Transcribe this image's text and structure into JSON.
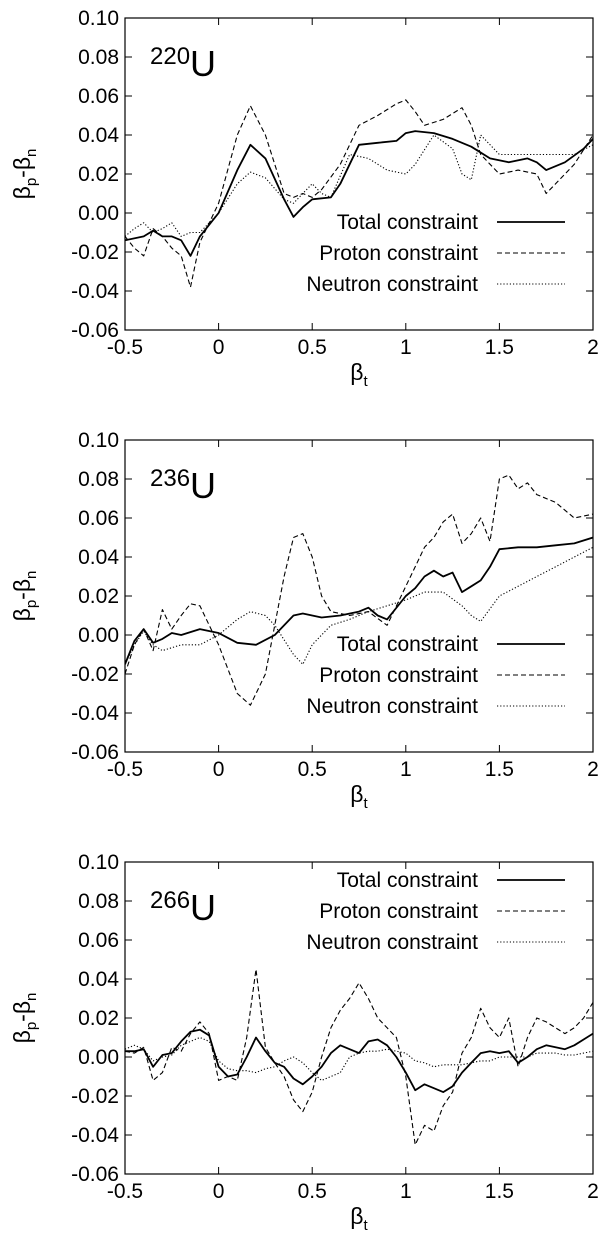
{
  "chart_data": [
    {
      "type": "line",
      "nucleus_mass": "220",
      "nucleus_symbol": "U",
      "xlabel": "β",
      "xlabel_sub": "t",
      "ylabel_parts": [
        "β",
        "p",
        "-β",
        "n"
      ],
      "xlim": [
        -0.5,
        2
      ],
      "ylim": [
        -0.06,
        0.1
      ],
      "xticks": [
        "-0.5",
        "0",
        "0.5",
        "1",
        "1.5",
        "2"
      ],
      "yticks": [
        "-0.06",
        "-0.04",
        "-0.02",
        "0.00",
        "0.02",
        "0.04",
        "0.06",
        "0.08",
        "0.10"
      ],
      "grid": false,
      "legend_position": "bottom-right",
      "series": [
        {
          "name": "Total constraint",
          "style": "solid",
          "x": [
            -0.5,
            -0.4,
            -0.35,
            -0.3,
            -0.25,
            -0.2,
            -0.15,
            -0.1,
            0,
            0.1,
            0.17,
            0.25,
            0.35,
            0.4,
            0.45,
            0.5,
            0.6,
            0.65,
            0.75,
            0.85,
            0.95,
            1.0,
            1.05,
            1.15,
            1.25,
            1.35,
            1.45,
            1.55,
            1.65,
            1.7,
            1.75,
            1.85,
            1.95,
            2.0
          ],
          "y": [
            -0.014,
            -0.012,
            -0.009,
            -0.012,
            -0.012,
            -0.014,
            -0.022,
            -0.012,
            0.0,
            0.022,
            0.035,
            0.028,
            0.007,
            -0.002,
            0.003,
            0.007,
            0.008,
            0.015,
            0.035,
            0.036,
            0.037,
            0.041,
            0.042,
            0.041,
            0.038,
            0.034,
            0.028,
            0.026,
            0.028,
            0.026,
            0.022,
            0.026,
            0.033,
            0.038
          ]
        },
        {
          "name": "Proton constraint",
          "style": "dashed",
          "x": [
            -0.5,
            -0.45,
            -0.4,
            -0.35,
            -0.3,
            -0.25,
            -0.2,
            -0.15,
            -0.1,
            0,
            0.1,
            0.17,
            0.25,
            0.35,
            0.4,
            0.45,
            0.5,
            0.55,
            0.65,
            0.75,
            0.85,
            0.95,
            1.0,
            1.05,
            1.1,
            1.2,
            1.3,
            1.35,
            1.4,
            1.5,
            1.6,
            1.7,
            1.75,
            1.8,
            1.9,
            2.0
          ],
          "y": [
            -0.012,
            -0.018,
            -0.022,
            -0.008,
            -0.012,
            -0.018,
            -0.022,
            -0.038,
            -0.015,
            0.005,
            0.04,
            0.055,
            0.04,
            0.01,
            0.008,
            0.01,
            0.008,
            0.012,
            0.025,
            0.045,
            0.05,
            0.056,
            0.058,
            0.052,
            0.045,
            0.048,
            0.054,
            0.045,
            0.03,
            0.02,
            0.022,
            0.02,
            0.01,
            0.015,
            0.025,
            0.04
          ]
        },
        {
          "name": "Neutron constraint",
          "style": "dotted",
          "x": [
            -0.5,
            -0.45,
            -0.4,
            -0.35,
            -0.3,
            -0.25,
            -0.2,
            -0.15,
            -0.1,
            0,
            0.1,
            0.17,
            0.25,
            0.35,
            0.4,
            0.45,
            0.5,
            0.55,
            0.6,
            0.7,
            0.8,
            0.9,
            1.0,
            1.05,
            1.15,
            1.25,
            1.3,
            1.35,
            1.4,
            1.5,
            1.6,
            1.7,
            1.8,
            1.9,
            2.0
          ],
          "y": [
            -0.012,
            -0.008,
            -0.005,
            -0.01,
            -0.008,
            -0.005,
            -0.012,
            -0.01,
            -0.01,
            0.0,
            0.015,
            0.021,
            0.018,
            0.007,
            0.005,
            0.01,
            0.015,
            0.01,
            0.008,
            0.03,
            0.028,
            0.022,
            0.02,
            0.025,
            0.04,
            0.033,
            0.02,
            0.017,
            0.04,
            0.03,
            0.03,
            0.03,
            0.03,
            0.03,
            0.035
          ]
        }
      ]
    },
    {
      "type": "line",
      "nucleus_mass": "236",
      "nucleus_symbol": "U",
      "xlabel": "β",
      "xlabel_sub": "t",
      "ylabel_parts": [
        "β",
        "p",
        "-β",
        "n"
      ],
      "xlim": [
        -0.5,
        2
      ],
      "ylim": [
        -0.06,
        0.1
      ],
      "xticks": [
        "-0.5",
        "0",
        "0.5",
        "1",
        "1.5",
        "2"
      ],
      "yticks": [
        "-0.06",
        "-0.04",
        "-0.02",
        "0.00",
        "0.02",
        "0.04",
        "0.06",
        "0.08",
        "0.10"
      ],
      "grid": false,
      "legend_position": "bottom-right",
      "series": [
        {
          "name": "Total constraint",
          "style": "solid",
          "x": [
            -0.5,
            -0.45,
            -0.4,
            -0.35,
            -0.3,
            -0.25,
            -0.2,
            -0.1,
            0,
            0.1,
            0.2,
            0.3,
            0.4,
            0.45,
            0.55,
            0.65,
            0.75,
            0.8,
            0.85,
            0.9,
            1.0,
            1.05,
            1.1,
            1.15,
            1.2,
            1.25,
            1.3,
            1.35,
            1.4,
            1.45,
            1.5,
            1.6,
            1.7,
            1.8,
            1.9,
            2.0
          ],
          "y": [
            -0.015,
            -0.003,
            0.003,
            -0.004,
            -0.002,
            0.001,
            0.0,
            0.003,
            0.001,
            -0.004,
            -0.005,
            0.0,
            0.01,
            0.011,
            0.009,
            0.01,
            0.012,
            0.014,
            0.01,
            0.008,
            0.02,
            0.024,
            0.03,
            0.033,
            0.03,
            0.032,
            0.022,
            0.025,
            0.028,
            0.035,
            0.044,
            0.045,
            0.045,
            0.046,
            0.047,
            0.05
          ]
        },
        {
          "name": "Proton constraint",
          "style": "dashed",
          "x": [
            -0.5,
            -0.45,
            -0.4,
            -0.35,
            -0.3,
            -0.25,
            -0.2,
            -0.15,
            -0.1,
            0,
            0.1,
            0.17,
            0.25,
            0.35,
            0.4,
            0.45,
            0.5,
            0.55,
            0.6,
            0.7,
            0.8,
            0.9,
            1.0,
            1.05,
            1.1,
            1.15,
            1.2,
            1.25,
            1.3,
            1.35,
            1.4,
            1.45,
            1.5,
            1.55,
            1.6,
            1.65,
            1.7,
            1.8,
            1.9,
            2.0
          ],
          "y": [
            -0.02,
            -0.005,
            0.003,
            -0.008,
            0.013,
            0.003,
            0.01,
            0.016,
            0.015,
            -0.005,
            -0.03,
            -0.036,
            -0.02,
            0.03,
            0.05,
            0.052,
            0.04,
            0.02,
            0.012,
            0.01,
            0.012,
            0.005,
            0.025,
            0.035,
            0.045,
            0.05,
            0.058,
            0.062,
            0.047,
            0.052,
            0.06,
            0.048,
            0.08,
            0.082,
            0.075,
            0.078,
            0.072,
            0.068,
            0.06,
            0.062
          ]
        },
        {
          "name": "Neutron constraint",
          "style": "dotted",
          "x": [
            -0.5,
            -0.45,
            -0.4,
            -0.35,
            -0.3,
            -0.2,
            -0.1,
            0,
            0.1,
            0.17,
            0.25,
            0.3,
            0.4,
            0.45,
            0.5,
            0.6,
            0.7,
            0.8,
            0.9,
            1.0,
            1.1,
            1.2,
            1.3,
            1.35,
            1.4,
            1.5,
            1.6,
            1.7,
            1.8,
            1.9,
            2.0
          ],
          "y": [
            -0.015,
            -0.005,
            0.002,
            -0.005,
            -0.008,
            -0.005,
            -0.005,
            0.0,
            0.008,
            0.012,
            0.01,
            0.005,
            -0.01,
            -0.015,
            -0.005,
            0.005,
            0.008,
            0.012,
            0.015,
            0.018,
            0.022,
            0.022,
            0.015,
            0.01,
            0.007,
            0.02,
            0.025,
            0.03,
            0.035,
            0.04,
            0.045
          ]
        }
      ]
    },
    {
      "type": "line",
      "nucleus_mass": "266",
      "nucleus_symbol": "U",
      "xlabel": "β",
      "xlabel_sub": "t",
      "ylabel_parts": [
        "β",
        "p",
        "-β",
        "n"
      ],
      "xlim": [
        -0.5,
        2
      ],
      "ylim": [
        -0.06,
        0.1
      ],
      "xticks": [
        "-0.5",
        "0",
        "0.5",
        "1",
        "1.5",
        "2"
      ],
      "yticks": [
        "-0.06",
        "-0.04",
        "-0.02",
        "0.00",
        "0.02",
        "0.04",
        "0.06",
        "0.08",
        "0.10"
      ],
      "grid": false,
      "legend_position": "top-right",
      "series": [
        {
          "name": "Total constraint",
          "style": "solid",
          "x": [
            -0.5,
            -0.45,
            -0.4,
            -0.35,
            -0.3,
            -0.25,
            -0.2,
            -0.15,
            -0.1,
            -0.05,
            0.0,
            0.05,
            0.1,
            0.15,
            0.2,
            0.25,
            0.3,
            0.35,
            0.4,
            0.45,
            0.5,
            0.55,
            0.6,
            0.65,
            0.7,
            0.75,
            0.8,
            0.85,
            0.9,
            0.95,
            1.0,
            1.05,
            1.1,
            1.15,
            1.2,
            1.25,
            1.3,
            1.35,
            1.4,
            1.45,
            1.5,
            1.55,
            1.6,
            1.65,
            1.7,
            1.75,
            1.8,
            1.85,
            1.9,
            1.95,
            2.0
          ],
          "y": [
            0.003,
            0.003,
            0.004,
            -0.005,
            0.001,
            0.002,
            0.008,
            0.013,
            0.014,
            0.011,
            -0.005,
            -0.01,
            -0.009,
            0.0,
            0.01,
            0.003,
            -0.003,
            -0.005,
            -0.011,
            -0.014,
            -0.01,
            -0.005,
            0.002,
            0.006,
            0.004,
            0.002,
            0.008,
            0.009,
            0.006,
            0.0,
            -0.008,
            -0.017,
            -0.014,
            -0.016,
            -0.018,
            -0.015,
            -0.008,
            -0.003,
            0.002,
            0.003,
            0.002,
            0.003,
            -0.003,
            0.0,
            0.004,
            0.006,
            0.005,
            0.004,
            0.006,
            0.009,
            0.012
          ]
        },
        {
          "name": "Proton constraint",
          "style": "dashed",
          "x": [
            -0.5,
            -0.45,
            -0.4,
            -0.35,
            -0.3,
            -0.25,
            -0.2,
            -0.15,
            -0.1,
            -0.05,
            0.0,
            0.05,
            0.1,
            0.15,
            0.2,
            0.25,
            0.3,
            0.35,
            0.4,
            0.45,
            0.5,
            0.55,
            0.6,
            0.65,
            0.7,
            0.75,
            0.8,
            0.85,
            0.9,
            0.95,
            1.0,
            1.05,
            1.1,
            1.15,
            1.2,
            1.25,
            1.3,
            1.35,
            1.4,
            1.45,
            1.5,
            1.55,
            1.6,
            1.65,
            1.7,
            1.75,
            1.8,
            1.85,
            1.9,
            1.95,
            2.0
          ],
          "y": [
            0.003,
            0.002,
            0.005,
            -0.012,
            -0.008,
            0.005,
            0.003,
            0.012,
            0.018,
            0.012,
            -0.012,
            -0.01,
            -0.012,
            0.01,
            0.045,
            0.005,
            -0.003,
            -0.01,
            -0.022,
            -0.028,
            -0.018,
            0.0,
            0.015,
            0.024,
            0.03,
            0.038,
            0.03,
            0.02,
            0.015,
            0.01,
            -0.01,
            -0.045,
            -0.035,
            -0.038,
            -0.025,
            -0.018,
            0.002,
            0.01,
            0.025,
            0.015,
            0.01,
            0.02,
            -0.005,
            0.01,
            0.02,
            0.018,
            0.015,
            0.012,
            0.015,
            0.02,
            0.028
          ]
        },
        {
          "name": "Neutron constraint",
          "style": "dotted",
          "x": [
            -0.5,
            -0.45,
            -0.4,
            -0.35,
            -0.3,
            -0.25,
            -0.2,
            -0.15,
            -0.1,
            -0.05,
            0.0,
            0.05,
            0.1,
            0.15,
            0.2,
            0.25,
            0.3,
            0.35,
            0.4,
            0.45,
            0.5,
            0.55,
            0.6,
            0.65,
            0.7,
            0.75,
            0.8,
            0.85,
            0.9,
            0.95,
            1.0,
            1.05,
            1.1,
            1.15,
            1.2,
            1.25,
            1.3,
            1.35,
            1.4,
            1.45,
            1.5,
            1.55,
            1.6,
            1.65,
            1.7,
            1.75,
            1.8,
            1.85,
            1.9,
            1.95,
            2.0
          ],
          "y": [
            0.004,
            0.006,
            0.004,
            -0.002,
            0.0,
            0.001,
            0.006,
            0.008,
            0.01,
            0.008,
            -0.002,
            -0.006,
            -0.007,
            -0.007,
            -0.008,
            -0.006,
            -0.005,
            -0.002,
            0.0,
            -0.003,
            -0.008,
            -0.012,
            -0.01,
            -0.008,
            0.0,
            0.002,
            0.003,
            0.003,
            0.004,
            0.003,
            0.002,
            -0.002,
            -0.003,
            -0.005,
            -0.004,
            -0.004,
            -0.004,
            -0.003,
            -0.002,
            -0.002,
            0.0,
            0.0,
            0.0,
            0.0,
            0.002,
            0.002,
            0.002,
            0.001,
            0.001,
            0.002,
            0.003
          ]
        }
      ]
    }
  ]
}
